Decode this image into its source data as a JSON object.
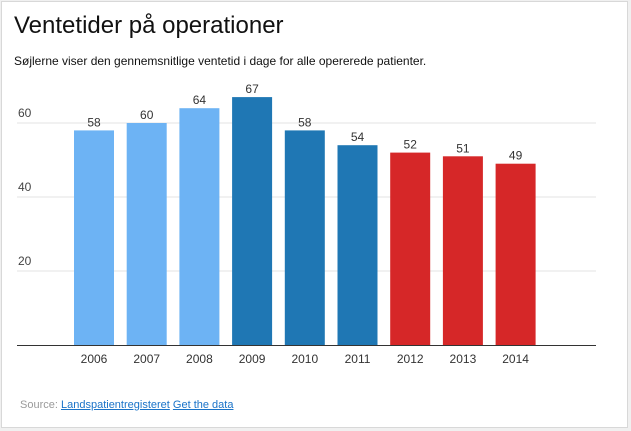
{
  "header": {
    "title": "Ventetider på operationer",
    "subtitle": "Søjlerne viser den gennemsnitlige ventetid i dage for alle opererede patienter."
  },
  "footer": {
    "source_prefix": "Source:",
    "source_link": "Landspatientregisteret",
    "data_link": "Get the data"
  },
  "chart_data": {
    "type": "bar",
    "title": "Ventetider på operationer",
    "subtitle": "Søjlerne viser den gennemsnitlige ventetid i dage for alle opererede patienter.",
    "xlabel": "",
    "ylabel": "",
    "categories": [
      "2006",
      "2007",
      "2008",
      "2009",
      "2010",
      "2011",
      "2012",
      "2013",
      "2014"
    ],
    "values": [
      58,
      60,
      64,
      67,
      58,
      54,
      52,
      51,
      49
    ],
    "bar_colors": [
      "#6db3f4",
      "#6db3f4",
      "#6db3f4",
      "#1f77b4",
      "#1f77b4",
      "#1f77b4",
      "#d62728",
      "#d62728",
      "#d62728"
    ],
    "ylim": [
      0,
      70
    ],
    "yticks": [
      20,
      40,
      60
    ],
    "grid": true,
    "legend": "none",
    "data_labels": true
  }
}
